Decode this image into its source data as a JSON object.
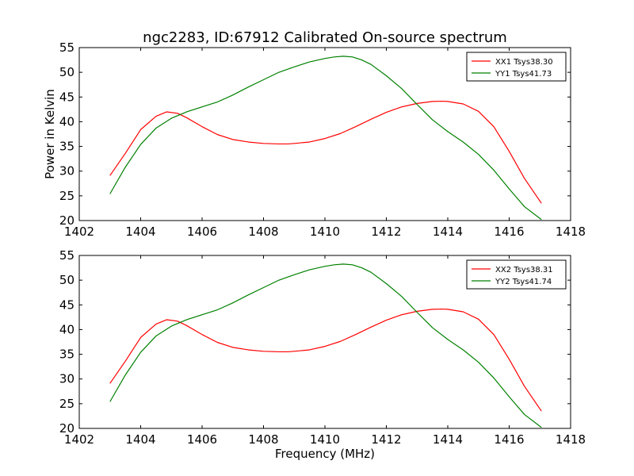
{
  "chart_data": [
    {
      "type": "line",
      "title": "ngc2283, ID:67912 Calibrated On-source spectrum",
      "xlabel": "",
      "ylabel": "Power in Kelvin",
      "xlim": [
        1402,
        1418
      ],
      "ylim": [
        20,
        55
      ],
      "xticks": [
        1402,
        1404,
        1406,
        1408,
        1410,
        1412,
        1414,
        1416,
        1418
      ],
      "yticks": [
        20,
        25,
        30,
        35,
        40,
        45,
        50,
        55
      ],
      "legend_position": "top-right",
      "grid": false,
      "series": [
        {
          "name": "XX1 Tsys38.30",
          "color": "#ff0000",
          "x": [
            1403.0,
            1403.5,
            1404.0,
            1404.5,
            1404.85,
            1405.2,
            1405.5,
            1406.0,
            1406.5,
            1407.0,
            1407.5,
            1408.0,
            1408.5,
            1408.8,
            1409.0,
            1409.5,
            1410.0,
            1410.5,
            1411.0,
            1411.5,
            1412.0,
            1412.5,
            1413.0,
            1413.5,
            1413.8,
            1414.0,
            1414.5,
            1415.0,
            1415.5,
            1416.0,
            1416.5,
            1417.05
          ],
          "y": [
            29.1,
            33.6,
            38.4,
            41.1,
            42.0,
            41.7,
            40.8,
            39.0,
            37.4,
            36.4,
            35.9,
            35.6,
            35.5,
            35.5,
            35.6,
            35.9,
            36.6,
            37.6,
            39.0,
            40.5,
            41.9,
            43.0,
            43.7,
            44.1,
            44.15,
            44.1,
            43.6,
            42.1,
            39.0,
            34.0,
            28.5,
            23.5
          ]
        },
        {
          "name": "YY1 Tsys41.73",
          "color": "#008000",
          "x": [
            1403.0,
            1403.5,
            1404.0,
            1404.5,
            1405.0,
            1405.5,
            1406.0,
            1406.5,
            1407.0,
            1407.5,
            1408.0,
            1408.5,
            1409.0,
            1409.5,
            1410.0,
            1410.3,
            1410.6,
            1410.9,
            1411.2,
            1411.5,
            1412.0,
            1412.5,
            1413.0,
            1413.5,
            1414.0,
            1414.5,
            1415.0,
            1415.5,
            1416.0,
            1416.5,
            1417.05
          ],
          "y": [
            25.4,
            30.8,
            35.4,
            38.7,
            40.7,
            42.0,
            43.0,
            44.0,
            45.4,
            47.0,
            48.5,
            50.0,
            51.1,
            52.1,
            52.8,
            53.1,
            53.25,
            53.1,
            52.5,
            51.6,
            49.3,
            46.7,
            43.5,
            40.4,
            38.0,
            35.9,
            33.4,
            30.2,
            26.4,
            22.8,
            20.2
          ]
        }
      ]
    },
    {
      "type": "line",
      "title": "",
      "xlabel": "Frequency (MHz)",
      "ylabel": "",
      "xlim": [
        1402,
        1418
      ],
      "ylim": [
        20,
        55
      ],
      "xticks": [
        1402,
        1404,
        1406,
        1408,
        1410,
        1412,
        1414,
        1416,
        1418
      ],
      "yticks": [
        20,
        25,
        30,
        35,
        40,
        45,
        50,
        55
      ],
      "legend_position": "top-right",
      "grid": false,
      "series": [
        {
          "name": "XX2 Tsys38.31",
          "color": "#ff0000",
          "x": [
            1403.0,
            1403.5,
            1404.0,
            1404.5,
            1404.85,
            1405.2,
            1405.5,
            1406.0,
            1406.5,
            1407.0,
            1407.5,
            1408.0,
            1408.5,
            1408.8,
            1409.0,
            1409.5,
            1410.0,
            1410.5,
            1411.0,
            1411.5,
            1412.0,
            1412.5,
            1413.0,
            1413.5,
            1413.8,
            1414.0,
            1414.5,
            1415.0,
            1415.5,
            1416.0,
            1416.5,
            1417.05
          ],
          "y": [
            29.1,
            33.6,
            38.4,
            41.1,
            42.0,
            41.7,
            40.8,
            39.0,
            37.4,
            36.4,
            35.9,
            35.6,
            35.5,
            35.5,
            35.6,
            35.9,
            36.6,
            37.6,
            39.0,
            40.5,
            41.9,
            43.0,
            43.7,
            44.1,
            44.15,
            44.1,
            43.6,
            42.1,
            39.0,
            34.0,
            28.5,
            23.5
          ]
        },
        {
          "name": "YY2 Tsys41.74",
          "color": "#008000",
          "x": [
            1403.0,
            1403.5,
            1404.0,
            1404.5,
            1405.0,
            1405.5,
            1406.0,
            1406.5,
            1407.0,
            1407.5,
            1408.0,
            1408.5,
            1409.0,
            1409.5,
            1410.0,
            1410.3,
            1410.6,
            1410.9,
            1411.2,
            1411.5,
            1412.0,
            1412.5,
            1413.0,
            1413.5,
            1414.0,
            1414.5,
            1415.0,
            1415.5,
            1416.0,
            1416.5,
            1417.05
          ],
          "y": [
            25.4,
            30.8,
            35.4,
            38.7,
            40.7,
            42.0,
            43.0,
            44.0,
            45.4,
            47.0,
            48.5,
            50.0,
            51.1,
            52.1,
            52.8,
            53.1,
            53.25,
            53.1,
            52.5,
            51.6,
            49.3,
            46.7,
            43.5,
            40.4,
            38.0,
            35.9,
            33.4,
            30.2,
            26.4,
            22.8,
            20.2
          ]
        }
      ]
    }
  ]
}
